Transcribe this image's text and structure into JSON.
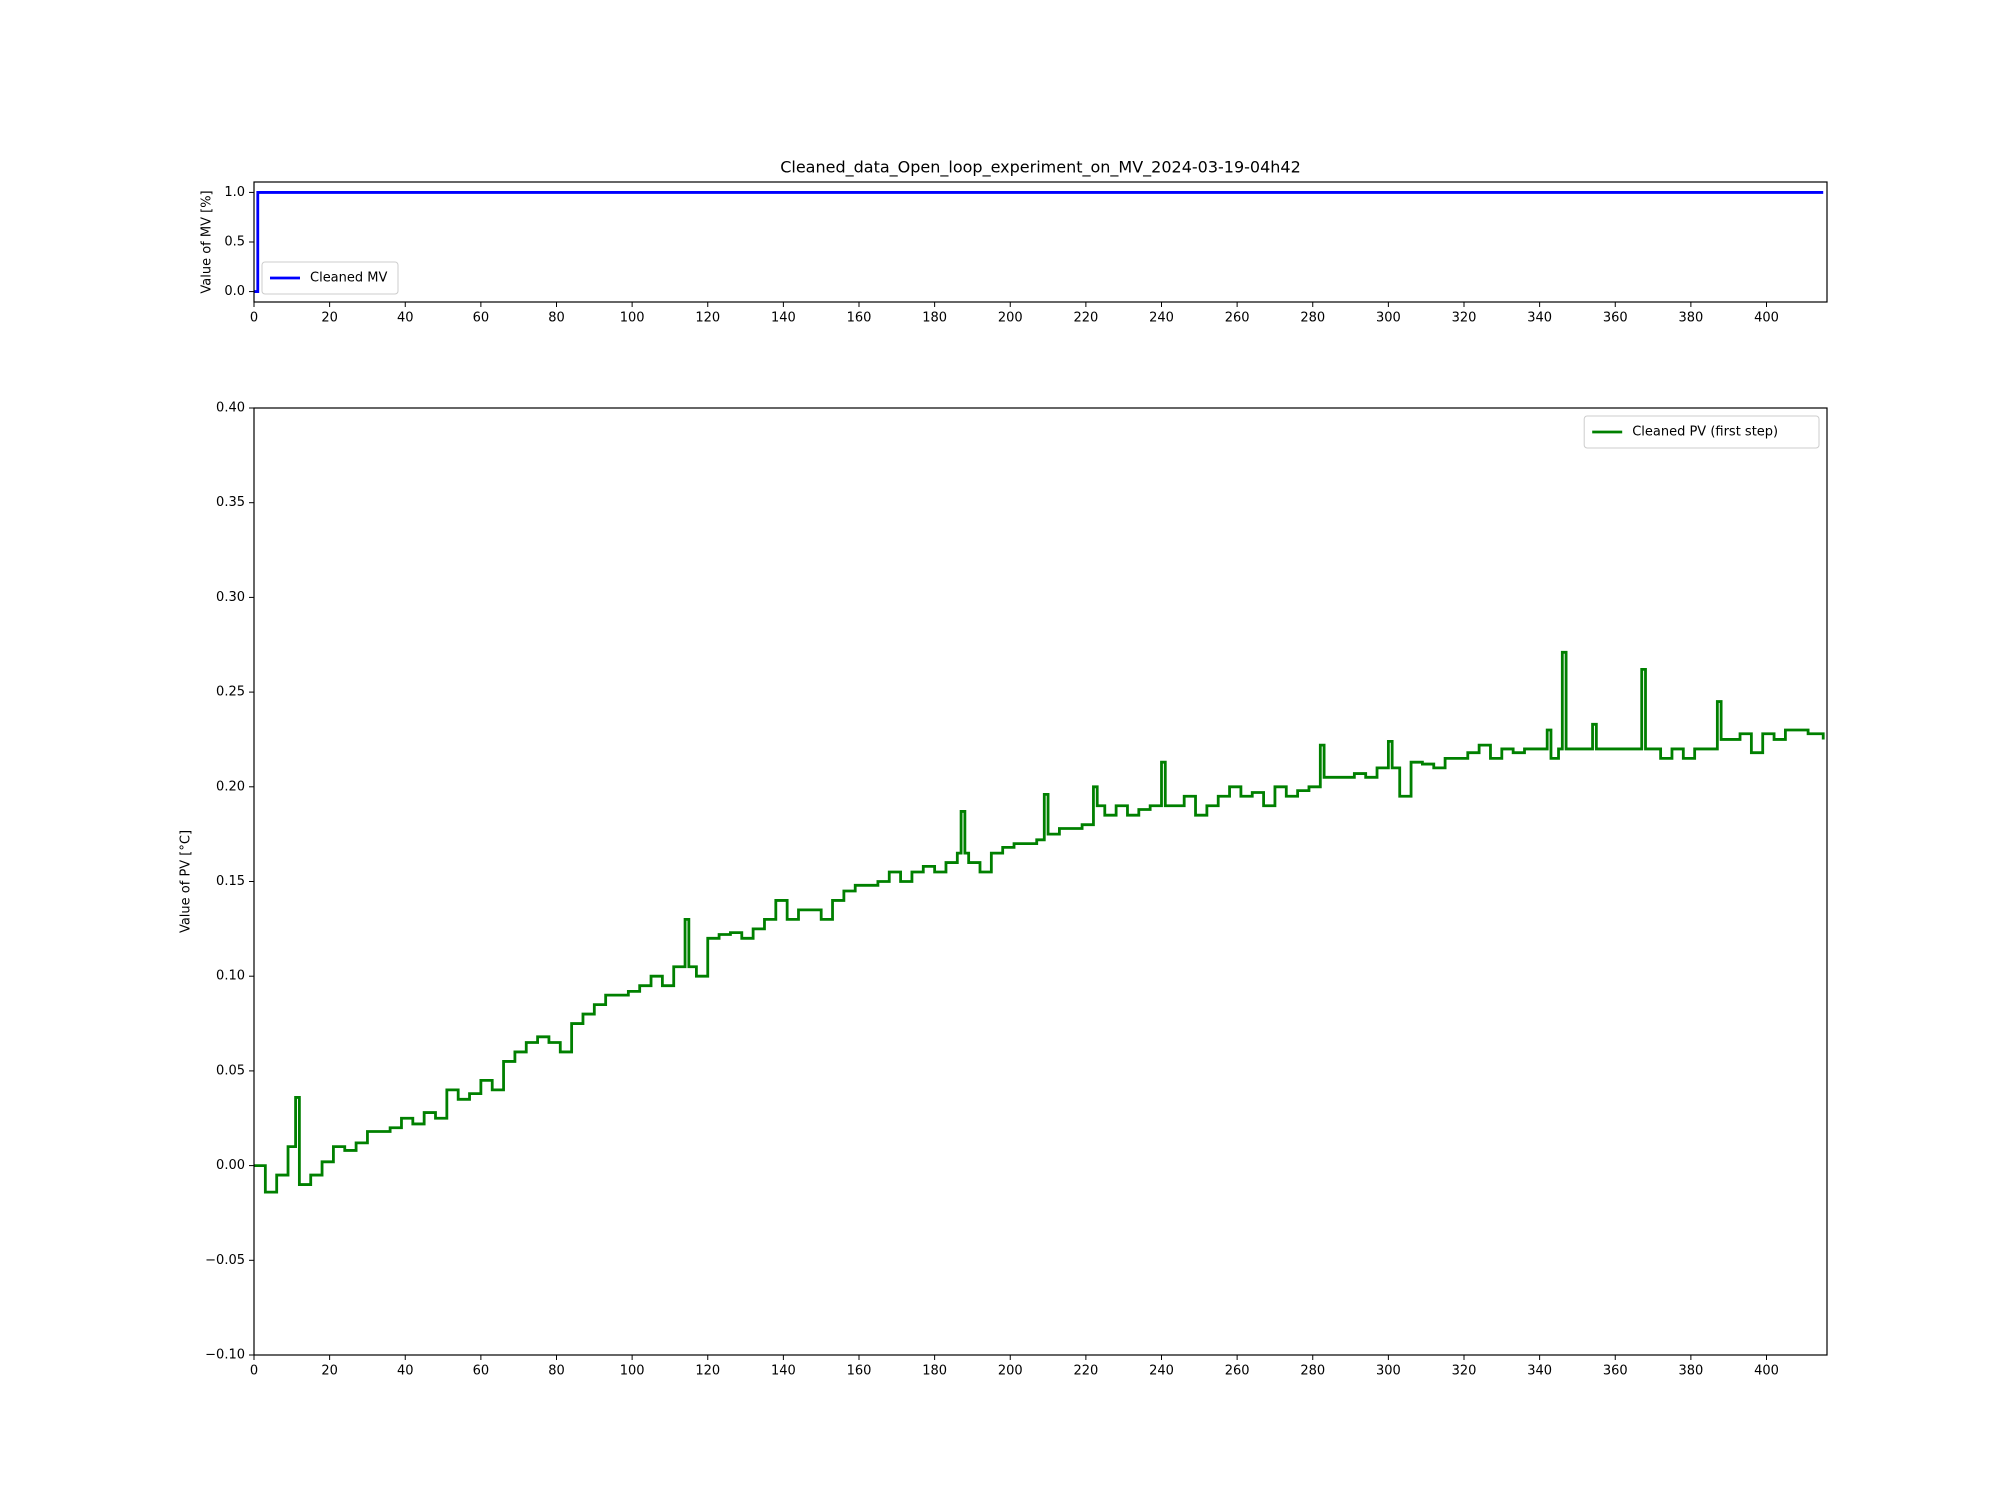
{
  "chart_data": [
    {
      "type": "line",
      "step": "post",
      "title": "Cleaned_data_Open_loop_experiment_on_MV_2024-03-19-04h42",
      "y_label": "Value of MV [%]",
      "xlim": [
        0,
        416
      ],
      "xticks": [
        0,
        20,
        40,
        60,
        80,
        100,
        120,
        140,
        160,
        180,
        200,
        220,
        240,
        260,
        280,
        300,
        320,
        340,
        360,
        380,
        400
      ],
      "ylim": [
        -0.105,
        1.105
      ],
      "yticks": [
        {
          "value": 0,
          "label": "0.0"
        },
        0.5,
        {
          "value": 1,
          "label": "1.0"
        }
      ],
      "legend": "lower left",
      "series": [
        {
          "name": "Cleaned MV",
          "color": "#0000ff",
          "x": [
            0,
            1,
            415
          ],
          "values": [
            0,
            1,
            1
          ]
        }
      ]
    },
    {
      "type": "line",
      "step": "post",
      "y_label": "Value of PV [°C]",
      "xlim": [
        0,
        416
      ],
      "xticks": [
        0,
        20,
        40,
        60,
        80,
        100,
        120,
        140,
        160,
        180,
        200,
        220,
        240,
        260,
        280,
        300,
        320,
        340,
        360,
        380,
        400
      ],
      "ylim": [
        -0.1,
        0.4
      ],
      "yticks": [
        {
          "value": -0.1,
          "label": "−0.10"
        },
        {
          "value": -0.05,
          "label": "−0.05"
        },
        {
          "value": 0,
          "label": "0.00"
        },
        0.05,
        {
          "value": 0.1,
          "label": "0.10"
        },
        0.15,
        {
          "value": 0.2,
          "label": "0.20"
        },
        0.25,
        {
          "value": 0.3,
          "label": "0.30"
        },
        0.35,
        {
          "value": 0.4,
          "label": "0.40"
        }
      ],
      "legend": "upper right",
      "series": [
        {
          "name": "Cleaned PV (first step)",
          "color": "#008000",
          "x": [
            0,
            3,
            6,
            9,
            11,
            12,
            15,
            18,
            21,
            24,
            27,
            30,
            33,
            36,
            39,
            42,
            45,
            48,
            51,
            54,
            57,
            60,
            63,
            66,
            69,
            72,
            75,
            78,
            81,
            84,
            87,
            90,
            93,
            96,
            99,
            102,
            105,
            108,
            111,
            114,
            115,
            117,
            120,
            123,
            126,
            129,
            132,
            135,
            138,
            141,
            144,
            147,
            150,
            153,
            156,
            159,
            162,
            165,
            168,
            171,
            174,
            177,
            180,
            183,
            186,
            187,
            188,
            189,
            192,
            195,
            198,
            201,
            204,
            207,
            209,
            210,
            213,
            216,
            219,
            222,
            223,
            225,
            228,
            231,
            234,
            237,
            240,
            241,
            243,
            246,
            249,
            252,
            255,
            258,
            261,
            264,
            267,
            270,
            273,
            276,
            279,
            282,
            283,
            285,
            288,
            291,
            294,
            297,
            300,
            301,
            303,
            306,
            309,
            312,
            315,
            318,
            321,
            324,
            327,
            330,
            333,
            336,
            339,
            342,
            343,
            345,
            346,
            347,
            351,
            354,
            355,
            357,
            360,
            363,
            366,
            367,
            368,
            372,
            375,
            378,
            381,
            384,
            387,
            388,
            390,
            393,
            396,
            399,
            402,
            405,
            408,
            411,
            414,
            415
          ],
          "values": [
            0,
            -0.014,
            -0.005,
            0.01,
            0.036,
            -0.01,
            -0.005,
            0.002,
            0.01,
            0.008,
            0.012,
            0.018,
            0.018,
            0.02,
            0.025,
            0.022,
            0.028,
            0.025,
            0.04,
            0.035,
            0.038,
            0.045,
            0.04,
            0.055,
            0.06,
            0.065,
            0.068,
            0.065,
            0.06,
            0.075,
            0.08,
            0.085,
            0.09,
            0.09,
            0.092,
            0.095,
            0.1,
            0.095,
            0.105,
            0.13,
            0.105,
            0.1,
            0.12,
            0.122,
            0.123,
            0.12,
            0.125,
            0.13,
            0.14,
            0.13,
            0.135,
            0.135,
            0.13,
            0.14,
            0.145,
            0.148,
            0.148,
            0.15,
            0.155,
            0.15,
            0.155,
            0.158,
            0.155,
            0.16,
            0.165,
            0.187,
            0.165,
            0.16,
            0.155,
            0.165,
            0.168,
            0.17,
            0.17,
            0.172,
            0.196,
            0.175,
            0.178,
            0.178,
            0.18,
            0.2,
            0.19,
            0.185,
            0.19,
            0.185,
            0.188,
            0.19,
            0.213,
            0.19,
            0.19,
            0.195,
            0.185,
            0.19,
            0.195,
            0.2,
            0.195,
            0.197,
            0.19,
            0.2,
            0.195,
            0.198,
            0.2,
            0.222,
            0.205,
            0.205,
            0.205,
            0.207,
            0.205,
            0.21,
            0.224,
            0.21,
            0.195,
            0.213,
            0.212,
            0.21,
            0.215,
            0.215,
            0.218,
            0.222,
            0.215,
            0.22,
            0.218,
            0.22,
            0.22,
            0.23,
            0.215,
            0.22,
            0.271,
            0.22,
            0.22,
            0.233,
            0.22,
            0.22,
            0.22,
            0.22,
            0.22,
            0.262,
            0.22,
            0.215,
            0.22,
            0.215,
            0.22,
            0.22,
            0.245,
            0.225,
            0.225,
            0.228,
            0.218,
            0.228,
            0.225,
            0.23,
            0.23,
            0.228,
            0.228,
            0.225
          ]
        }
      ]
    }
  ]
}
